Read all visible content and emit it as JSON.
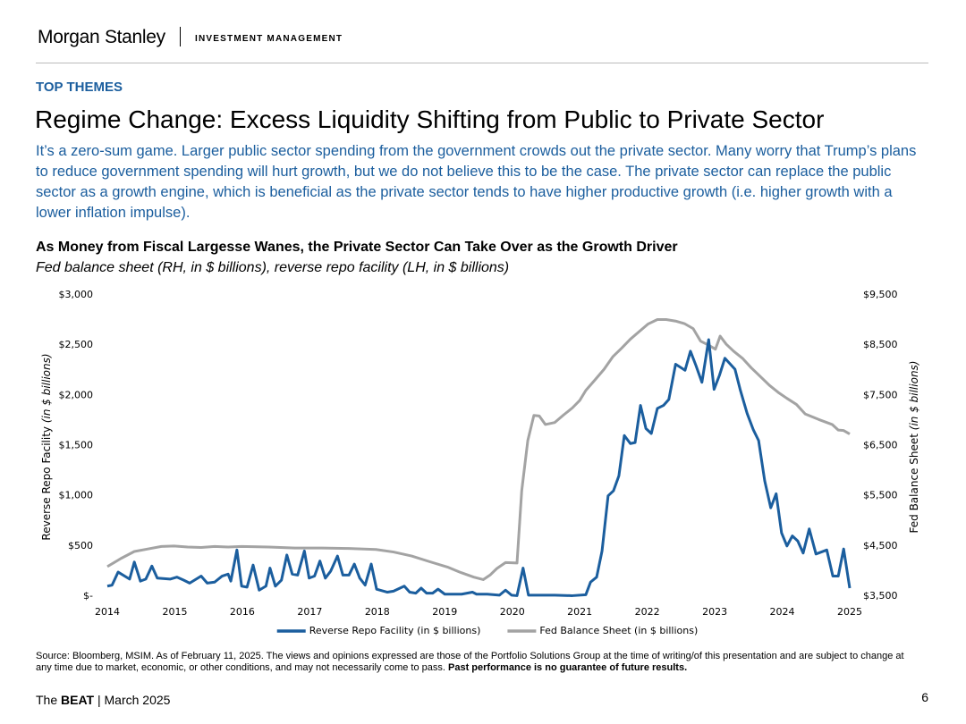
{
  "header": {
    "logo": "Morgan Stanley",
    "division": "INVESTMENT MANAGEMENT"
  },
  "section": "TOP THEMES",
  "title": "Regime Change: Excess Liquidity Shifting from Public to Private Sector",
  "intro": "It’s a zero-sum game. Larger public sector spending from the government crowds out the private sector. Many worry that Trump’s plans to reduce government spending will hurt growth, but we do not believe this to be the case. The private sector can replace the public sector as a growth engine, which is beneficial as the private sector tends to have higher productive growth (i.e. higher growth with a lower inflation impulse).",
  "chart_data": {
    "type": "line",
    "title": "As Money from Fiscal Largesse Wanes, the Private Sector Can Take Over as the Growth Driver",
    "subtitle": "Fed balance sheet (RH, in $ billions), reverse repo facility (LH, in $ billions)",
    "y_label": "Reverse Repo Facility",
    "y_label_unit": "(in $ billions)",
    "y2_label": "Fed Balance Sheet",
    "y2_label_unit": "(in $ billions)",
    "xlim": [
      2014,
      2025
    ],
    "xticks": [
      2014,
      2015,
      2016,
      2017,
      2018,
      2019,
      2020,
      2021,
      2022,
      2023,
      2024,
      2025
    ],
    "ylim": [
      0,
      3000
    ],
    "yticks": [
      {
        "value": 0,
        "label": "$-"
      },
      {
        "value": 500,
        "label": "$500"
      },
      {
        "value": 1000,
        "label": "$1,000"
      },
      {
        "value": 1500,
        "label": "$1,500"
      },
      {
        "value": 2000,
        "label": "$2,000"
      },
      {
        "value": 2500,
        "label": "$2,500"
      },
      {
        "value": 3000,
        "label": "$3,000"
      }
    ],
    "y2lim": [
      3500,
      9500
    ],
    "y2ticks": [
      {
        "value": 3500,
        "label": "$3,500"
      },
      {
        "value": 4500,
        "label": "$4,500"
      },
      {
        "value": 5500,
        "label": "$5,500"
      },
      {
        "value": 6500,
        "label": "$6,500"
      },
      {
        "value": 7500,
        "label": "$7,500"
      },
      {
        "value": 8500,
        "label": "$8,500"
      },
      {
        "value": 9500,
        "label": "$9,500"
      }
    ],
    "legend": "bottom",
    "series": [
      {
        "name": "Reverse Repo Facility (in $ billions)",
        "color": "#1b5e9e",
        "x": [
          2014.0,
          2014.07,
          2014.16,
          2014.33,
          2014.4,
          2014.49,
          2014.57,
          2014.66,
          2014.74,
          2014.93,
          2015.03,
          2015.13,
          2015.22,
          2015.39,
          2015.48,
          2015.59,
          2015.7,
          2015.79,
          2015.83,
          2015.92,
          2015.99,
          2016.07,
          2016.16,
          2016.25,
          2016.35,
          2016.41,
          2016.49,
          2016.58,
          2016.66,
          2016.74,
          2016.82,
          2016.92,
          2016.99,
          2017.07,
          2017.15,
          2017.23,
          2017.31,
          2017.41,
          2017.49,
          2017.58,
          2017.66,
          2017.74,
          2017.82,
          2017.91,
          2017.99,
          2018.15,
          2018.24,
          2018.4,
          2018.48,
          2018.57,
          2018.65,
          2018.73,
          2018.82,
          2018.9,
          2019.0,
          2019.25,
          2019.41,
          2019.47,
          2019.63,
          2019.81,
          2019.9,
          2019.99,
          2020.07,
          2020.16,
          2020.24,
          2020.63,
          2020.89,
          2021.09,
          2021.16,
          2021.25,
          2021.33,
          2021.42,
          2021.5,
          2021.58,
          2021.66,
          2021.75,
          2021.82,
          2021.9,
          2021.98,
          2022.06,
          2022.15,
          2022.24,
          2022.32,
          2022.42,
          2022.56,
          2022.64,
          2022.72,
          2022.81,
          2022.91,
          2022.99,
          2023.07,
          2023.15,
          2023.3,
          2023.38,
          2023.48,
          2023.57,
          2023.65,
          2023.74,
          2023.83,
          2023.91,
          2023.99,
          2024.07,
          2024.15,
          2024.23,
          2024.31,
          2024.4,
          2024.5,
          2024.66,
          2024.75,
          2024.83,
          2024.91,
          2025.0
        ],
        "values": [
          100,
          110,
          240,
          170,
          340,
          150,
          170,
          300,
          180,
          170,
          190,
          160,
          130,
          200,
          130,
          140,
          200,
          220,
          150,
          460,
          100,
          90,
          310,
          60,
          100,
          280,
          100,
          160,
          410,
          220,
          210,
          450,
          180,
          200,
          350,
          180,
          250,
          400,
          210,
          210,
          320,
          180,
          110,
          320,
          70,
          40,
          50,
          100,
          40,
          30,
          80,
          30,
          30,
          70,
          20,
          20,
          40,
          20,
          20,
          10,
          60,
          10,
          5,
          280,
          10,
          10,
          5,
          15,
          140,
          190,
          450,
          1000,
          1050,
          1200,
          1600,
          1520,
          1530,
          1900,
          1670,
          1620,
          1870,
          1900,
          1960,
          2310,
          2250,
          2440,
          2300,
          2130,
          2555,
          2060,
          2200,
          2370,
          2260,
          2050,
          1820,
          1660,
          1550,
          1150,
          880,
          1020,
          630,
          500,
          600,
          550,
          430,
          670,
          420,
          460,
          200,
          200,
          470,
          80
        ]
      },
      {
        "name": "Fed Balance Sheet (in $ billions)",
        "color": "#a3a3a3",
        "axis": "y2",
        "x": [
          2014.0,
          2014.2,
          2014.4,
          2014.6,
          2014.8,
          2014.99,
          2015.19,
          2015.39,
          2015.59,
          2015.79,
          2015.99,
          2016.39,
          2016.78,
          2017.18,
          2017.58,
          2017.98,
          2018.24,
          2018.51,
          2018.77,
          2019.04,
          2019.24,
          2019.43,
          2019.57,
          2019.67,
          2019.77,
          2019.9,
          2020.07,
          2020.14,
          2020.23,
          2020.32,
          2020.4,
          2020.49,
          2020.63,
          2020.76,
          2020.89,
          2021.0,
          2021.09,
          2021.22,
          2021.36,
          2021.49,
          2021.62,
          2021.75,
          2021.88,
          2022.01,
          2022.15,
          2022.28,
          2022.42,
          2022.55,
          2022.68,
          2022.79,
          2022.91,
          2023.01,
          2023.08,
          2023.17,
          2023.28,
          2023.41,
          2023.54,
          2023.68,
          2023.81,
          2023.94,
          2024.07,
          2024.21,
          2024.34,
          2024.54,
          2024.74,
          2024.83,
          2024.91,
          2025.0
        ],
        "values": [
          4090,
          4250,
          4390,
          4440,
          4490,
          4500,
          4480,
          4470,
          4490,
          4480,
          4490,
          4480,
          4460,
          4460,
          4450,
          4430,
          4380,
          4300,
          4190,
          4080,
          3970,
          3880,
          3830,
          3920,
          4050,
          4170,
          4160,
          5600,
          6600,
          7100,
          7090,
          6920,
          6960,
          7110,
          7250,
          7400,
          7600,
          7800,
          8020,
          8270,
          8440,
          8620,
          8770,
          8920,
          9010,
          9010,
          8980,
          8930,
          8830,
          8580,
          8500,
          8420,
          8680,
          8520,
          8380,
          8240,
          8050,
          7870,
          7700,
          7560,
          7440,
          7320,
          7130,
          7020,
          6920,
          6810,
          6800,
          6730
        ]
      }
    ]
  },
  "source": {
    "text": "Source: Bloomberg, MSIM. As of February 11, 2025. The views and opinions expressed are those of the Portfolio Solutions Group at the time of writing/of this presentation and are subject to change at any time due to market, economic, or other conditions, and may not necessarily come to pass.",
    "emphasis": "Past performance is no guarantee of future results."
  },
  "footer": {
    "prefix": "The",
    "brand": "BEAT",
    "date": "| March 2025",
    "page": 6
  }
}
